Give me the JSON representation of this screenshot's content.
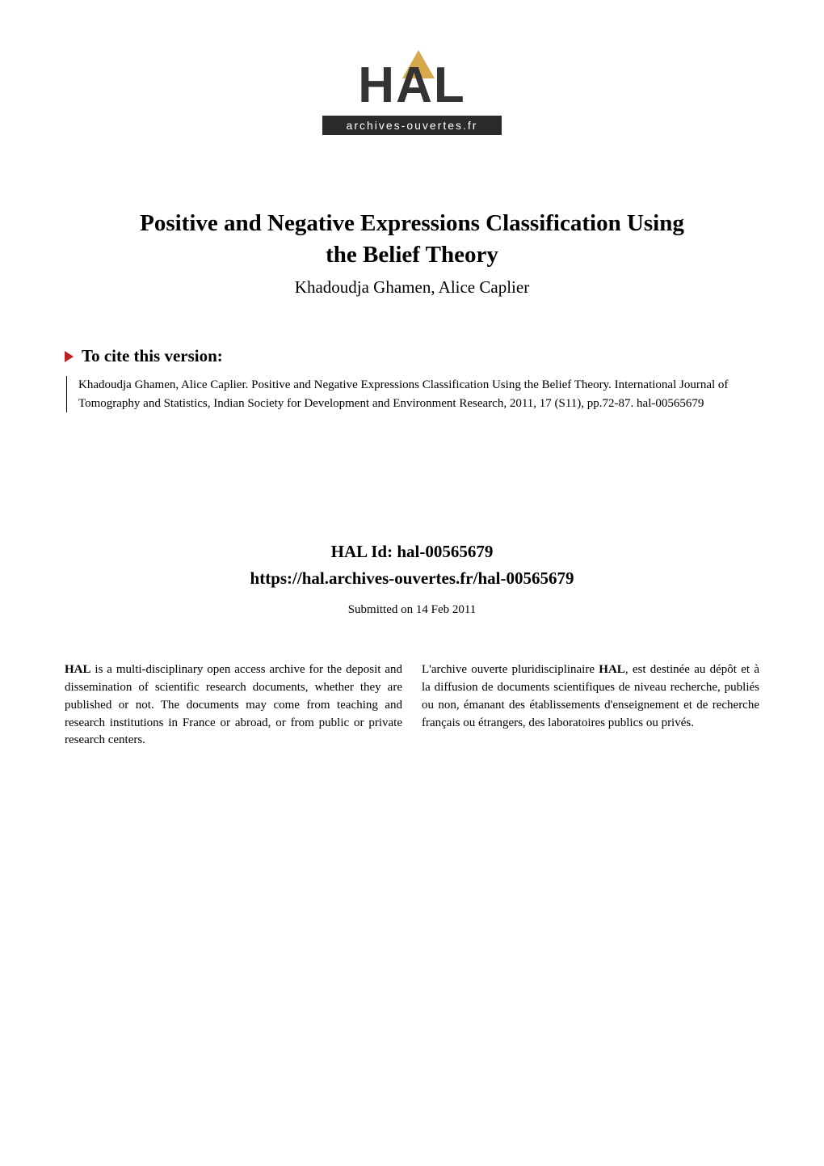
{
  "logo": {
    "text": "HAL",
    "subtitle": "archives-ouvertes.fr"
  },
  "title_line1": "Positive and Negative Expressions Classification Using",
  "title_line2": "the Belief Theory",
  "authors": "Khadoudja Ghamen, Alice Caplier",
  "cite_header": "To cite this version:",
  "citation": "Khadoudja Ghamen, Alice Caplier. Positive and Negative Expressions Classification Using the Belief Theory. International Journal of Tomography and Statistics, Indian Society for Development and Environment Research, 2011, 17 (S11), pp.72-87. hal-00565679",
  "hal_id_label": "HAL Id: ",
  "hal_id": "hal-00565679",
  "hal_url": "https://hal.archives-ouvertes.fr/hal-00565679",
  "submitted": "Submitted on 14 Feb 2011",
  "left_column_bold": "HAL",
  "left_column_text": " is a multi-disciplinary open access archive for the deposit and dissemination of scientific research documents, whether they are published or not. The documents may come from teaching and research institutions in France or abroad, or from public or private research centers.",
  "right_column_prefix": "L'archive ouverte pluridisciplinaire ",
  "right_column_bold": "HAL",
  "right_column_text": ", est destinée au dépôt et à la diffusion de documents scientifiques de niveau recherche, publiés ou non, émanant des établissements d'enseignement et de recherche français ou étrangers, des laboratoires publics ou privés.",
  "colors": {
    "triangle": "#c02020",
    "logo_accent": "#d4a84b",
    "logo_bg": "#2a2a2a",
    "text": "#000000",
    "background": "#ffffff"
  },
  "typography": {
    "title_fontsize": 29,
    "authors_fontsize": 21,
    "cite_title_fontsize": 21,
    "body_fontsize": 15,
    "logo_fontsize": 62
  }
}
